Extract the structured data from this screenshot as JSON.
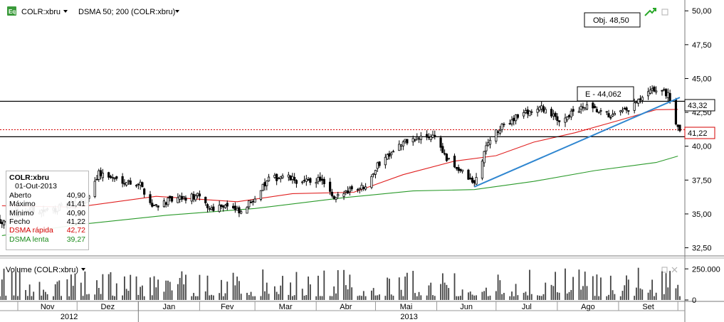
{
  "header": {
    "eq_icon_text": "Eq",
    "symbol_dropdown": "COLR:xbru",
    "indicator_dropdown": "DSMA 50; 200 (COLR:xbru)",
    "objective_label": "Obj. 48,50"
  },
  "annotations": {
    "e_label": "E - 44,062",
    "resistance_level_label": "43,32",
    "last_price_label": "41,22"
  },
  "legend": {
    "symbol": "COLR:xbru",
    "date": "01-Out-2013",
    "rows": [
      {
        "label": "Aberto",
        "value": "40,90",
        "color": "#000000"
      },
      {
        "label": "Máximo",
        "value": "41,41",
        "color": "#000000"
      },
      {
        "label": "Mínimo",
        "value": "40,90",
        "color": "#000000"
      },
      {
        "label": "Fecho",
        "value": "41,22",
        "color": "#000000"
      },
      {
        "label": "DSMA rápida",
        "value": "42,72",
        "color": "#d40000"
      },
      {
        "label": "DSMA lenta",
        "value": "39,27",
        "color": "#1a8a1a"
      }
    ]
  },
  "volume_panel": {
    "title": "Volume (COLR:xbru)"
  },
  "colors": {
    "fast_ma": "#e02020",
    "slow_ma": "#2a9a2a",
    "trendline": "#2f86d0",
    "price": "#000000",
    "volume": "#444444",
    "last_price_dotted": "#d40000"
  },
  "chart_data": {
    "type": "candlestick",
    "price_axis": {
      "ticks": [
        "50,00",
        "47,50",
        "45,00",
        "42,50",
        "40,00",
        "37,50",
        "35,00",
        "32,50"
      ],
      "tick_values": [
        50,
        47.5,
        45,
        42.5,
        40,
        37.5,
        35,
        32.5
      ],
      "range": [
        31.9,
        50.8
      ]
    },
    "volume_axis": {
      "ticks": [
        "250.000",
        "0"
      ],
      "tick_values": [
        250000,
        0
      ],
      "max": 320000
    },
    "time_axis": {
      "months": [
        "Nov",
        "Dez",
        "Jan",
        "Fev",
        "Mar",
        "Abr",
        "Mai",
        "Jun",
        "Jul",
        "Ago",
        "Set"
      ],
      "years": [
        "2012",
        "2013"
      ],
      "range": [
        "2012-10-23",
        "2013-10-02"
      ]
    },
    "horizontal_lines": [
      {
        "value": 43.32,
        "style": "solid"
      },
      {
        "value": 41.22,
        "style": "dotted"
      },
      {
        "value": 40.7,
        "style": "solid"
      }
    ],
    "trendline": {
      "from": {
        "date": "2013-06-20",
        "price": 37.0
      },
      "to": {
        "date": "2013-10-02",
        "price": 43.6
      }
    },
    "close_series": [
      [
        "2012-10-24",
        34.5
      ],
      [
        "2012-11-05",
        35.3
      ],
      [
        "2012-11-15",
        35.2
      ],
      [
        "2012-11-26",
        35.6
      ],
      [
        "2012-12-05",
        35.9
      ],
      [
        "2012-12-12",
        38.0
      ],
      [
        "2012-12-20",
        37.6
      ],
      [
        "2013-01-02",
        37.2
      ],
      [
        "2013-01-08",
        35.6
      ],
      [
        "2013-01-15",
        35.9
      ],
      [
        "2013-01-22",
        36.1
      ],
      [
        "2013-01-31",
        36.3
      ],
      [
        "2013-02-06",
        35.4
      ],
      [
        "2013-02-14",
        35.7
      ],
      [
        "2013-02-22",
        35.0
      ],
      [
        "2013-03-01",
        36.3
      ],
      [
        "2013-03-08",
        37.5
      ],
      [
        "2013-03-15",
        37.8
      ],
      [
        "2013-03-25",
        37.3
      ],
      [
        "2013-04-03",
        37.6
      ],
      [
        "2013-04-10",
        36.0
      ],
      [
        "2013-04-18",
        36.9
      ],
      [
        "2013-04-25",
        37.0
      ],
      [
        "2013-05-02",
        38.6
      ],
      [
        "2013-05-10",
        39.8
      ],
      [
        "2013-05-17",
        40.4
      ],
      [
        "2013-05-24",
        40.6
      ],
      [
        "2013-05-31",
        40.8
      ],
      [
        "2013-06-06",
        39.0
      ],
      [
        "2013-06-13",
        38.2
      ],
      [
        "2013-06-20",
        37.2
      ],
      [
        "2013-06-27",
        40.4
      ],
      [
        "2013-07-04",
        41.4
      ],
      [
        "2013-07-11",
        42.2
      ],
      [
        "2013-07-18",
        42.6
      ],
      [
        "2013-07-25",
        42.8
      ],
      [
        "2013-08-01",
        41.9
      ],
      [
        "2013-08-08",
        42.4
      ],
      [
        "2013-08-15",
        42.9
      ],
      [
        "2013-08-22",
        42.5
      ],
      [
        "2013-08-29",
        42.2
      ],
      [
        "2013-09-05",
        42.6
      ],
      [
        "2013-09-12",
        43.4
      ],
      [
        "2013-09-19",
        44.2
      ],
      [
        "2013-09-26",
        43.9
      ],
      [
        "2013-10-01",
        41.22
      ]
    ],
    "fast_ma": [
      [
        "2012-10-24",
        35.6
      ],
      [
        "2012-12-01",
        35.5
      ],
      [
        "2013-01-10",
        36.3
      ],
      [
        "2013-02-20",
        35.9
      ],
      [
        "2013-03-20",
        36.5
      ],
      [
        "2013-04-20",
        36.6
      ],
      [
        "2013-05-15",
        37.9
      ],
      [
        "2013-06-10",
        38.9
      ],
      [
        "2013-07-01",
        39.3
      ],
      [
        "2013-07-20",
        40.3
      ],
      [
        "2013-08-10",
        41.0
      ],
      [
        "2013-09-01",
        41.9
      ],
      [
        "2013-09-20",
        42.7
      ],
      [
        "2013-10-01",
        42.72
      ]
    ],
    "slow_ma": [
      [
        "2012-10-24",
        33.4
      ],
      [
        "2012-12-01",
        34.2
      ],
      [
        "2013-01-15",
        34.9
      ],
      [
        "2013-03-01",
        35.4
      ],
      [
        "2013-04-15",
        36.2
      ],
      [
        "2013-05-20",
        36.7
      ],
      [
        "2013-06-20",
        36.8
      ],
      [
        "2013-07-20",
        37.4
      ],
      [
        "2013-08-20",
        38.2
      ],
      [
        "2013-09-20",
        38.8
      ],
      [
        "2013-10-01",
        39.27
      ]
    ]
  }
}
